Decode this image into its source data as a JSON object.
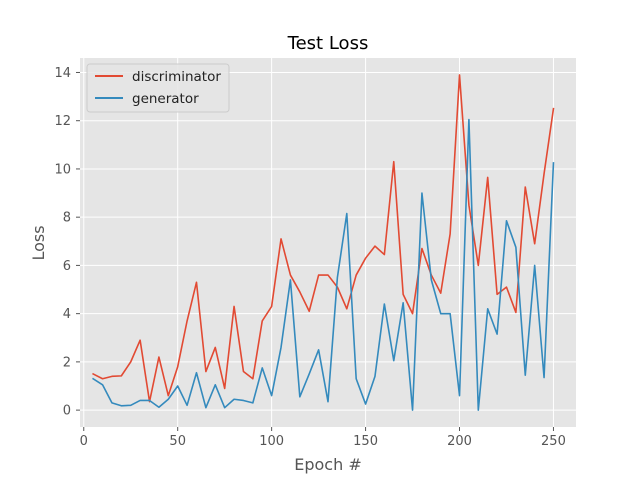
{
  "chart_data": {
    "type": "line",
    "title": "Test Loss",
    "xlabel": "Epoch #",
    "ylabel": "Loss",
    "xlim": [
      -2,
      262
    ],
    "ylim": [
      -0.7,
      14.6
    ],
    "xticks": [
      0,
      50,
      100,
      150,
      200,
      250
    ],
    "yticks": [
      0,
      2,
      4,
      6,
      8,
      10,
      12,
      14
    ],
    "grid": true,
    "legend_position": "top-left",
    "background_color": "#e5e5e5",
    "x": [
      5,
      10,
      15,
      20,
      25,
      30,
      35,
      40,
      45,
      50,
      55,
      60,
      65,
      70,
      75,
      80,
      85,
      90,
      95,
      100,
      105,
      110,
      115,
      120,
      125,
      130,
      135,
      140,
      145,
      150,
      155,
      160,
      165,
      170,
      175,
      180,
      185,
      190,
      195,
      200,
      205,
      210,
      215,
      220,
      225,
      230,
      235,
      240,
      245,
      250
    ],
    "series": [
      {
        "name": "discriminator",
        "color": "#e24a33",
        "values": [
          1.5,
          1.3,
          1.4,
          1.42,
          2.0,
          2.9,
          0.35,
          2.2,
          0.6,
          1.8,
          3.7,
          5.3,
          1.6,
          2.6,
          0.9,
          4.3,
          1.6,
          1.3,
          3.7,
          4.3,
          7.1,
          5.6,
          4.9,
          4.1,
          5.6,
          5.6,
          5.1,
          4.2,
          5.6,
          6.3,
          6.8,
          6.45,
          10.3,
          4.8,
          4.0,
          6.7,
          5.6,
          4.85,
          7.3,
          13.9,
          8.5,
          6.0,
          9.65,
          4.8,
          5.1,
          4.05,
          9.25,
          6.9,
          9.8,
          12.5
        ]
      },
      {
        "name": "generator",
        "color": "#348abd",
        "values": [
          1.3,
          1.05,
          0.3,
          0.18,
          0.2,
          0.4,
          0.4,
          0.12,
          0.45,
          1.0,
          0.2,
          1.55,
          0.1,
          1.05,
          0.1,
          0.45,
          0.4,
          0.3,
          1.75,
          0.6,
          2.6,
          5.4,
          0.55,
          1.5,
          2.5,
          0.35,
          5.5,
          8.15,
          1.3,
          0.25,
          1.4,
          4.4,
          2.05,
          4.45,
          0.0,
          9.0,
          5.4,
          4.0,
          4.0,
          0.6,
          12.05,
          0.0,
          4.2,
          3.15,
          7.85,
          6.75,
          1.45,
          6.0,
          1.35,
          10.25
        ]
      }
    ]
  }
}
